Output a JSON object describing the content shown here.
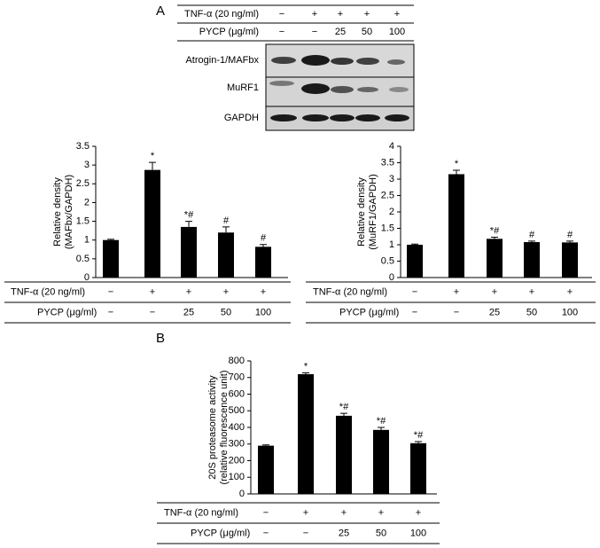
{
  "panel_labels": [
    "A",
    "B"
  ],
  "blot": {
    "treatments": [
      {
        "name": "TNF-α (20 ng/ml)",
        "levels": [
          "−",
          "+",
          "+",
          "+",
          "+"
        ]
      },
      {
        "name": "PYCP (μg/ml)",
        "levels": [
          "−",
          "−",
          "25",
          "50",
          "100"
        ]
      }
    ],
    "rows": [
      "Atrogin-1/MAFbx",
      "MuRF1",
      "GAPDH"
    ]
  },
  "chart_data": [
    {
      "type": "bar",
      "ylabel": [
        "Relative density",
        "(MAFbx/GAPDH)"
      ],
      "values": [
        1.0,
        2.87,
        1.35,
        1.2,
        0.82
      ],
      "errors": [
        0.02,
        0.2,
        0.15,
        0.15,
        0.06
      ],
      "annotations": [
        null,
        "*",
        "*#",
        "#",
        "#"
      ],
      "color": "#000000",
      "ylim": [
        0,
        3.5
      ],
      "yticks": [
        0,
        0.5,
        1,
        1.5,
        2,
        2.5,
        3,
        3.5
      ],
      "treatments": [
        {
          "name": "TNF-α (20 ng/ml)",
          "levels": [
            "−",
            "+",
            "+",
            "+",
            "+"
          ]
        },
        {
          "name": "PYCP (μg/ml)",
          "levels": [
            "−",
            "−",
            "25",
            "50",
            "100"
          ]
        }
      ]
    },
    {
      "type": "bar",
      "ylabel": [
        "Relative density",
        "(MuRF1/GAPDH)"
      ],
      "values": [
        1.0,
        3.15,
        1.18,
        1.08,
        1.07
      ],
      "errors": [
        0.02,
        0.12,
        0.05,
        0.03,
        0.04
      ],
      "annotations": [
        null,
        "*",
        "*#",
        "#",
        "#"
      ],
      "color": "#000000",
      "ylim": [
        0,
        4
      ],
      "yticks": [
        0,
        0.5,
        1,
        1.5,
        2,
        2.5,
        3,
        3.5,
        4
      ],
      "treatments": [
        {
          "name": "TNF-α (20 ng/ml)",
          "levels": [
            "−",
            "+",
            "+",
            "+",
            "+"
          ]
        },
        {
          "name": "PYCP (μg/ml)",
          "levels": [
            "−",
            "−",
            "25",
            "50",
            "100"
          ]
        }
      ]
    },
    {
      "type": "bar",
      "ylabel": [
        "20S proteasome activity",
        "(relative fluorescence unit)"
      ],
      "values": [
        290,
        720,
        470,
        385,
        305
      ],
      "errors": [
        5,
        8,
        15,
        15,
        10
      ],
      "annotations": [
        null,
        "*",
        "*#",
        "*#",
        "*#"
      ],
      "color": "#000000",
      "ylim": [
        0,
        800
      ],
      "yticks": [
        0,
        100,
        200,
        300,
        400,
        500,
        600,
        700,
        800
      ],
      "treatments": [
        {
          "name": "TNF-α (20 ng/ml)",
          "levels": [
            "−",
            "+",
            "+",
            "+",
            "+"
          ]
        },
        {
          "name": "PYCP (μg/ml)",
          "levels": [
            "−",
            "−",
            "25",
            "50",
            "100"
          ]
        }
      ]
    }
  ]
}
